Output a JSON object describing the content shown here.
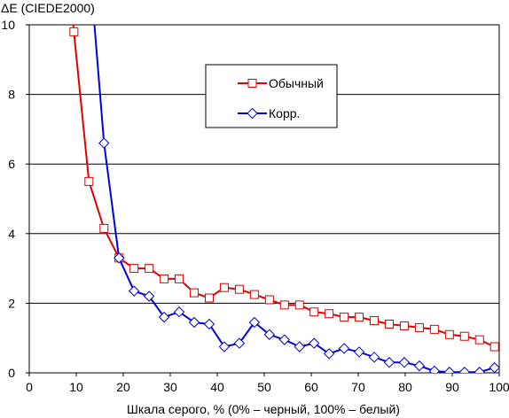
{
  "chart_data": {
    "type": "line",
    "title": "",
    "ylabel": "ΔE (CIEDE2000)",
    "xlabel": "Шкала серого, % (0% – черный, 100% – белый)",
    "xlim": [
      0,
      100
    ],
    "ylim": [
      0,
      10
    ],
    "xticks": [
      "0",
      "10",
      "20",
      "30",
      "40",
      "50",
      "60",
      "70",
      "80",
      "90",
      "100"
    ],
    "yticks": [
      "0",
      "2",
      "4",
      "6",
      "8",
      "10"
    ],
    "grid": "horizontal",
    "legend_position": "top-right",
    "series": [
      {
        "name": "Обычный",
        "color": "#e00000",
        "marker": "square",
        "x": [
          9.0,
          9.5,
          12.7,
          15.9,
          19.1,
          22.3,
          25.5,
          28.7,
          31.9,
          35.1,
          38.3,
          41.5,
          44.7,
          47.9,
          51.1,
          54.3,
          57.5,
          60.6,
          63.8,
          67.0,
          70.2,
          73.4,
          76.6,
          79.8,
          83.0,
          86.2,
          89.4,
          92.6,
          95.8,
          99.0
        ],
        "y": [
          10.6,
          9.8,
          5.5,
          4.15,
          3.3,
          3.0,
          3.0,
          2.7,
          2.7,
          2.3,
          2.15,
          2.45,
          2.4,
          2.25,
          2.1,
          1.95,
          1.95,
          1.75,
          1.7,
          1.6,
          1.6,
          1.5,
          1.4,
          1.35,
          1.3,
          1.25,
          1.1,
          1.05,
          0.95,
          0.75
        ]
      },
      {
        "name": "Корр.",
        "color": "#0000e0",
        "marker": "diamond",
        "x": [
          13.5,
          15.9,
          19.1,
          22.3,
          25.5,
          28.7,
          31.9,
          35.1,
          38.3,
          41.5,
          44.7,
          47.9,
          51.1,
          54.3,
          57.5,
          60.6,
          63.8,
          67.0,
          70.2,
          73.4,
          76.6,
          79.8,
          83.0,
          86.2,
          89.4,
          92.6,
          95.8,
          99.0
        ],
        "y": [
          10.6,
          6.6,
          3.3,
          2.35,
          2.2,
          1.6,
          1.75,
          1.45,
          1.4,
          0.75,
          0.85,
          1.45,
          1.1,
          0.95,
          0.75,
          0.85,
          0.55,
          0.7,
          0.6,
          0.45,
          0.3,
          0.3,
          0.2,
          0.05,
          0.02,
          0.02,
          0.02,
          0.15
        ]
      }
    ]
  }
}
